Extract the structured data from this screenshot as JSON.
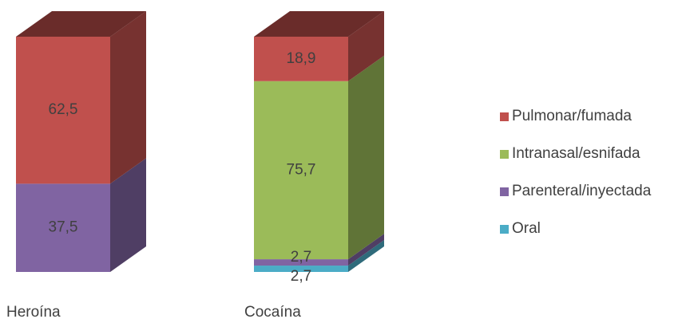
{
  "chart_data": {
    "type": "bar",
    "stacked": true,
    "style": "3d",
    "categories": [
      "Heroína",
      "Cocaína"
    ],
    "ylim": [
      0,
      100
    ],
    "grid": false,
    "legend_position": "right",
    "series": [
      {
        "name": "Oral",
        "color": "#4BACC6",
        "values": [
          null,
          2.7
        ],
        "labels": [
          "",
          "2,7"
        ]
      },
      {
        "name": "Parenteral/inyectada",
        "color": "#8064A2",
        "values": [
          37.5,
          2.7
        ],
        "labels": [
          "37,5",
          "2,7"
        ]
      },
      {
        "name": "Intranasal/esnifada",
        "color": "#9BBB59",
        "values": [
          null,
          75.7
        ],
        "labels": [
          "",
          "75,7"
        ]
      },
      {
        "name": "Pulmonar/fumada",
        "color": "#C0504D",
        "values": [
          62.5,
          18.9
        ],
        "labels": [
          "62,5",
          "18,9"
        ]
      }
    ],
    "legend_order": [
      "Pulmonar/fumada",
      "Intranasal/esnifada",
      "Parenteral/inyectada",
      "Oral"
    ]
  }
}
